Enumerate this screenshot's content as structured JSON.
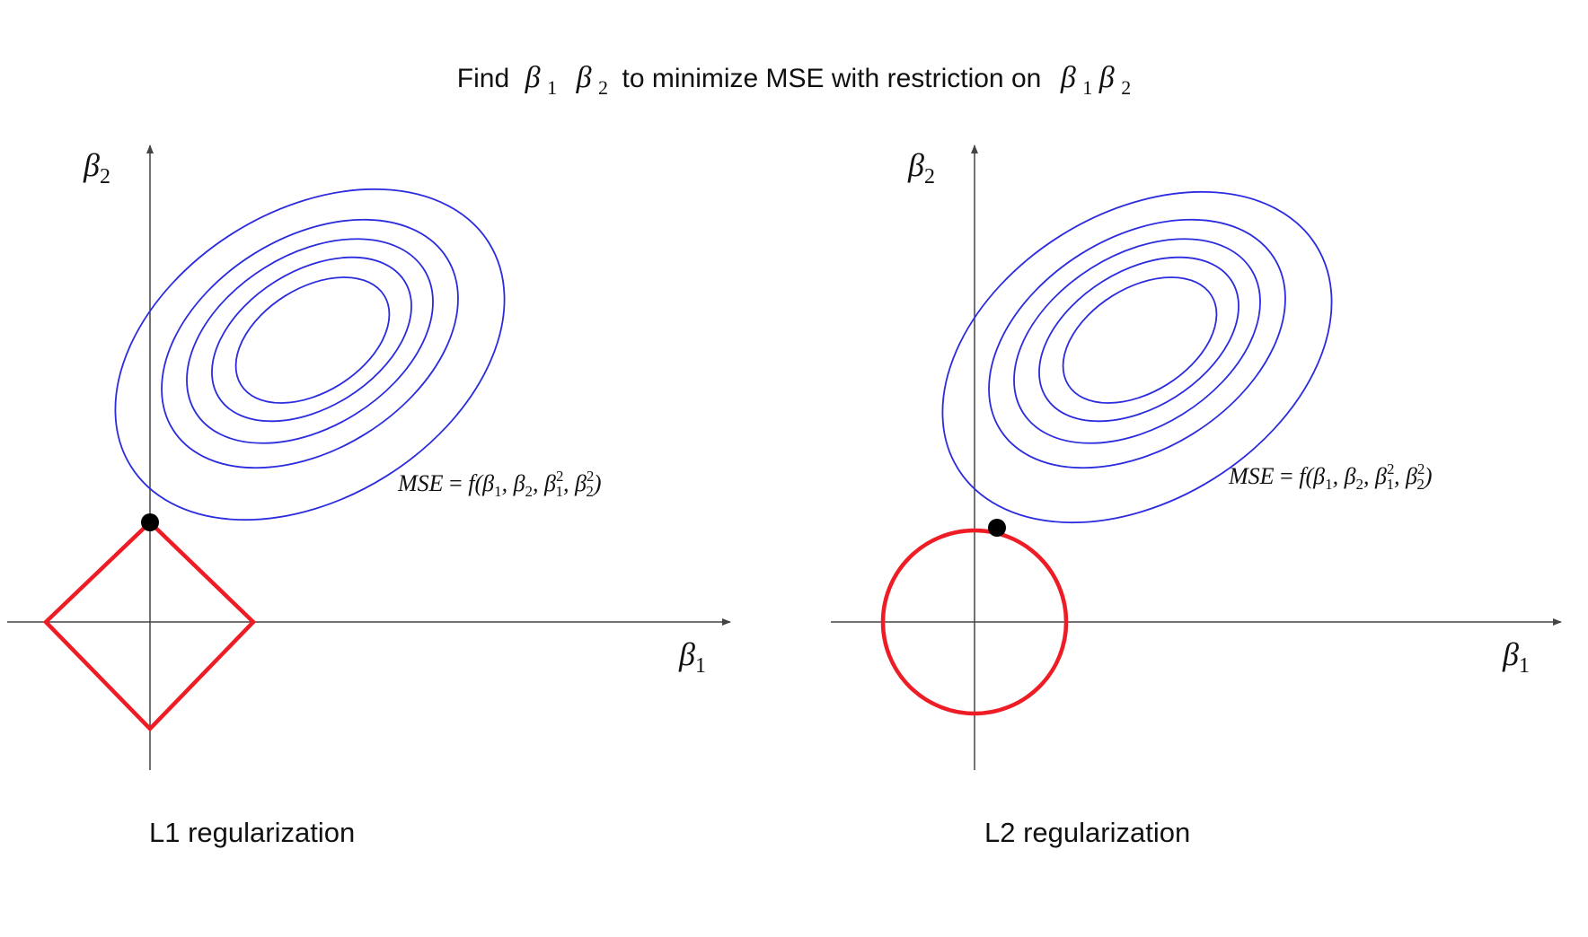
{
  "title": {
    "find": "Find",
    "beta1": "β",
    "beta1_sub": "1",
    "beta2": "β",
    "beta2_sub": "2",
    "middle": "to minimize MSE with restriction on",
    "r_beta1": "β",
    "r_beta1_sub": "1",
    "r_beta2": "β",
    "r_beta2_sub": "2"
  },
  "panels": [
    {
      "caption": "L1 regularization",
      "constraint": "diamond",
      "y_axis_label": "β",
      "y_axis_sub": "2",
      "x_axis_label": "β",
      "x_axis_sub": "1",
      "mse": {
        "lhs": "MSE",
        "eq": " = ",
        "f": "f",
        "args": "(β",
        "s1": "1",
        "c1": ", β",
        "s2": "2",
        "c2": ", β",
        "s3sup": "2",
        "s3sub": "1",
        "c3": ", β",
        "s4sup": "2",
        "s4sub": "2",
        "close": ")"
      }
    },
    {
      "caption": "L2 regularization",
      "constraint": "circle",
      "y_axis_label": "β",
      "y_axis_sub": "2",
      "x_axis_label": "β",
      "x_axis_sub": "1",
      "mse": {
        "lhs": "MSE",
        "eq": " = ",
        "f": "f",
        "args": "(β",
        "s1": "1",
        "c1": ", β",
        "s2": "2",
        "c2": ", β",
        "s3sup": "2",
        "s3sub": "1",
        "c3": ", β",
        "s4sup": "2",
        "s4sub": "2",
        "close": ")"
      }
    }
  ],
  "colors": {
    "contour": "#2b2bdf",
    "constraint": "#ee1c24",
    "axis": "#444444",
    "point": "#000000",
    "text": "#111111"
  }
}
